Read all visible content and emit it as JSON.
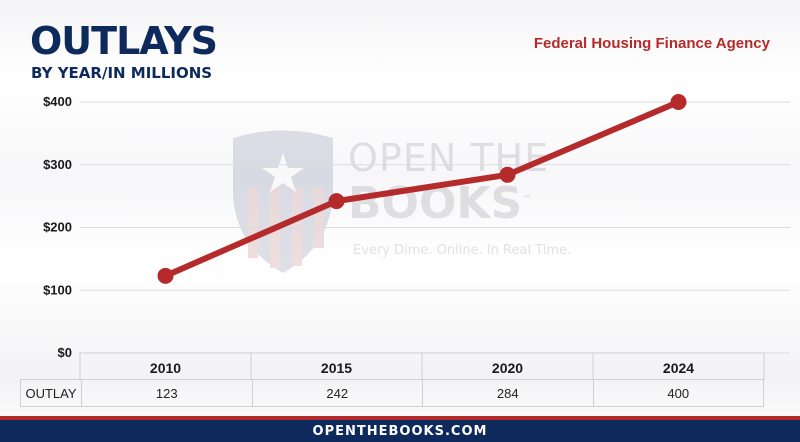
{
  "header": {
    "title": "OUTLAYS",
    "subtitle": "BY YEAR/IN MILLIONS",
    "agency": "Federal Housing Finance Agency"
  },
  "watermark": {
    "line1": "OPEN THE",
    "line2": "BOOKS",
    "tm": "™",
    "tagline": "Every Dime. Online. In Real Time."
  },
  "colors": {
    "navy": "#0e2a5c",
    "red": "#b52a2a"
  },
  "chart_data": {
    "type": "line",
    "categories": [
      "2010",
      "2015",
      "2020",
      "2024"
    ],
    "values": [
      123,
      242,
      284,
      400
    ],
    "title": "OUTLAYS",
    "subtitle": "BY YEAR/IN MILLIONS",
    "xlabel": "",
    "ylabel": "",
    "ylim": [
      0,
      400
    ],
    "yticks": [
      "$0",
      "$100",
      "$200",
      "$300",
      "$400"
    ],
    "grid": true,
    "table": {
      "row_label": "OUTLAY",
      "values": [
        "123",
        "242",
        "284",
        "400"
      ]
    }
  },
  "footer": {
    "text": "OPENTHEBOOKS.COM"
  }
}
